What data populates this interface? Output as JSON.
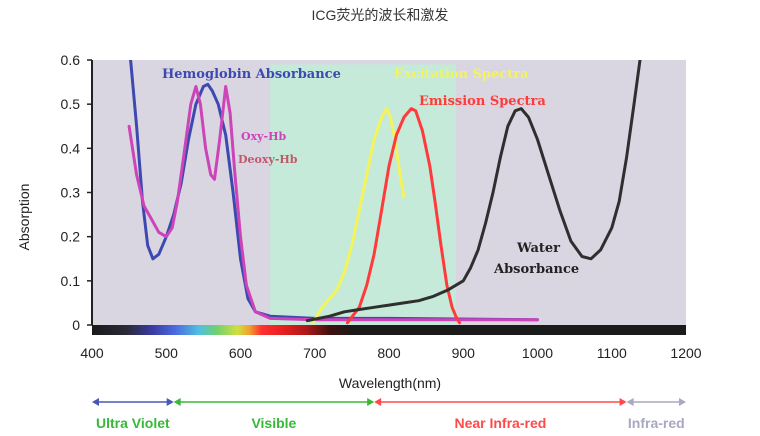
{
  "chart_data": {
    "type": "line",
    "title": "ICG荧光的波长和激发",
    "xlabel": "Wavelength(nm)",
    "ylabel": "Absorption",
    "xlim": [
      400,
      1200
    ],
    "ylim": [
      0,
      0.6
    ],
    "xticks": [
      400,
      500,
      600,
      700,
      800,
      900,
      1000,
      1100,
      1200
    ],
    "yticks": [
      0,
      0.1,
      0.2,
      0.3,
      0.4,
      0.5,
      0.6
    ],
    "grid": false,
    "highlight_band": {
      "x": [
        640,
        890
      ],
      "color": "#c2ecd8"
    },
    "series": [
      {
        "name": "Hemoglobin Absorbance",
        "color": "#3d49b0",
        "points": [
          [
            452,
            0.6
          ],
          [
            460,
            0.45
          ],
          [
            468,
            0.28
          ],
          [
            475,
            0.18
          ],
          [
            482,
            0.15
          ],
          [
            490,
            0.16
          ],
          [
            500,
            0.2
          ],
          [
            510,
            0.25
          ],
          [
            520,
            0.32
          ],
          [
            530,
            0.42
          ],
          [
            540,
            0.5
          ],
          [
            550,
            0.54
          ],
          [
            556,
            0.545
          ],
          [
            562,
            0.53
          ],
          [
            570,
            0.5
          ],
          [
            580,
            0.43
          ],
          [
            590,
            0.3
          ],
          [
            600,
            0.15
          ],
          [
            610,
            0.06
          ],
          [
            620,
            0.03
          ],
          [
            640,
            0.02
          ],
          [
            700,
            0.015
          ],
          [
            800,
            0.015
          ],
          [
            1000,
            0.012
          ]
        ]
      },
      {
        "name": "Oxy-Hb",
        "color": "#cc44b8",
        "points": [
          [
            450,
            0.45
          ],
          [
            460,
            0.34
          ],
          [
            470,
            0.27
          ],
          [
            480,
            0.24
          ],
          [
            490,
            0.21
          ],
          [
            500,
            0.2
          ],
          [
            508,
            0.22
          ],
          [
            515,
            0.28
          ],
          [
            525,
            0.4
          ],
          [
            533,
            0.5
          ],
          [
            540,
            0.54
          ],
          [
            546,
            0.5
          ],
          [
            553,
            0.4
          ],
          [
            560,
            0.34
          ],
          [
            565,
            0.33
          ],
          [
            572,
            0.42
          ],
          [
            580,
            0.54
          ],
          [
            586,
            0.48
          ],
          [
            592,
            0.35
          ],
          [
            600,
            0.2
          ],
          [
            608,
            0.09
          ],
          [
            620,
            0.03
          ],
          [
            640,
            0.015
          ],
          [
            700,
            0.012
          ],
          [
            800,
            0.012
          ],
          [
            900,
            0.012
          ],
          [
            1000,
            0.012
          ]
        ]
      },
      {
        "name": "Excitation Spectra",
        "color": "#f4f45a",
        "points": [
          [
            697,
            0.005
          ],
          [
            703,
            0.02
          ],
          [
            710,
            0.04
          ],
          [
            720,
            0.06
          ],
          [
            730,
            0.08
          ],
          [
            740,
            0.12
          ],
          [
            750,
            0.18
          ],
          [
            760,
            0.26
          ],
          [
            770,
            0.34
          ],
          [
            780,
            0.42
          ],
          [
            790,
            0.47
          ],
          [
            797,
            0.49
          ],
          [
            802,
            0.47
          ],
          [
            808,
            0.42
          ],
          [
            815,
            0.34
          ],
          [
            820,
            0.29
          ]
        ]
      },
      {
        "name": "Emission Spectra",
        "color": "#ff3a3a",
        "points": [
          [
            744,
            0.005
          ],
          [
            760,
            0.04
          ],
          [
            770,
            0.09
          ],
          [
            780,
            0.16
          ],
          [
            790,
            0.26
          ],
          [
            800,
            0.36
          ],
          [
            810,
            0.43
          ],
          [
            820,
            0.47
          ],
          [
            830,
            0.49
          ],
          [
            836,
            0.485
          ],
          [
            845,
            0.44
          ],
          [
            855,
            0.36
          ],
          [
            862,
            0.28
          ],
          [
            870,
            0.18
          ],
          [
            878,
            0.09
          ],
          [
            885,
            0.04
          ],
          [
            890,
            0.02
          ],
          [
            895,
            0.005
          ]
        ]
      },
      {
        "name": "Water Absorbance",
        "color": "#2f2f2f",
        "points": [
          [
            690,
            0.01
          ],
          [
            720,
            0.02
          ],
          [
            740,
            0.03
          ],
          [
            760,
            0.035
          ],
          [
            780,
            0.04
          ],
          [
            800,
            0.045
          ],
          [
            820,
            0.05
          ],
          [
            840,
            0.055
          ],
          [
            860,
            0.065
          ],
          [
            880,
            0.08
          ],
          [
            900,
            0.1
          ],
          [
            910,
            0.13
          ],
          [
            920,
            0.17
          ],
          [
            930,
            0.23
          ],
          [
            940,
            0.3
          ],
          [
            950,
            0.38
          ],
          [
            960,
            0.45
          ],
          [
            970,
            0.485
          ],
          [
            978,
            0.49
          ],
          [
            988,
            0.47
          ],
          [
            1000,
            0.42
          ],
          [
            1015,
            0.34
          ],
          [
            1030,
            0.26
          ],
          [
            1045,
            0.19
          ],
          [
            1060,
            0.155
          ],
          [
            1072,
            0.15
          ],
          [
            1085,
            0.17
          ],
          [
            1100,
            0.22
          ],
          [
            1110,
            0.28
          ],
          [
            1120,
            0.38
          ],
          [
            1130,
            0.5
          ],
          [
            1138,
            0.6
          ]
        ]
      }
    ],
    "annotations": [
      {
        "text": "Oxy-Hb",
        "color": "#cc44b8"
      },
      {
        "text": "Deoxy-Hb",
        "color": "#c05a68"
      },
      {
        "text": "Water",
        "color": "#222222"
      },
      {
        "text": "Absorbance",
        "color": "#222222"
      }
    ],
    "regions": [
      {
        "label": "Ultra Violet",
        "color": "#4a56b8",
        "text_color": "#38b838",
        "x": [
          400,
          510
        ]
      },
      {
        "label": "Visible",
        "color": "#38b838",
        "text_color": "#38b838",
        "x": [
          510,
          780
        ]
      },
      {
        "label": "Near Infra-red",
        "color": "#ff4a4a",
        "text_color": "#ff4a4a",
        "x": [
          780,
          1120
        ]
      },
      {
        "label": "Infra-red",
        "color": "#a8a8c0",
        "text_color": "#a8a8c0",
        "x": [
          1120,
          1200
        ]
      }
    ],
    "colors": {
      "plot_background": "#d9d6e2",
      "axis": "#222222",
      "spectrum_bar": "#1b1b1b"
    }
  }
}
